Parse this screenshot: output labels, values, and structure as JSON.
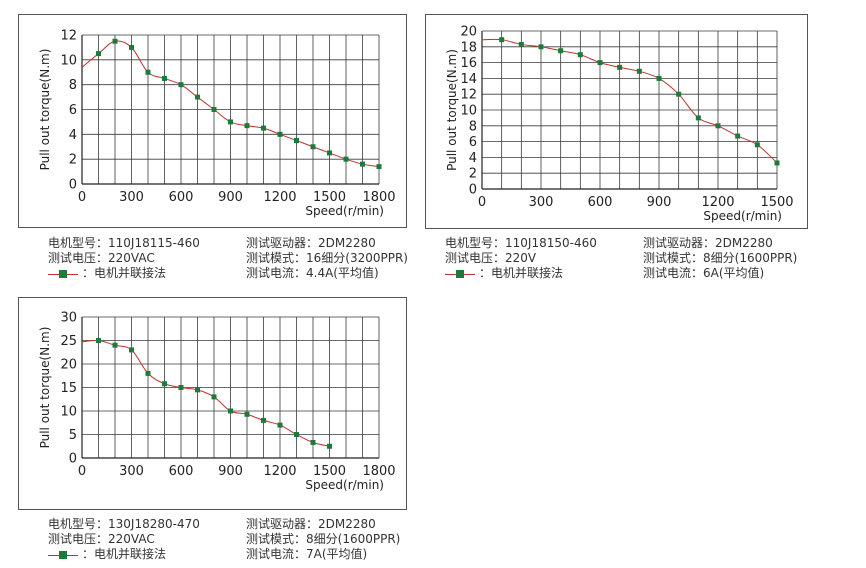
{
  "chart_data": [
    {
      "type": "line",
      "xlabel": "Speed(r/min)",
      "ylabel": "Pull out torque(N.m)",
      "xlim": [
        0,
        1800
      ],
      "ylim": [
        0,
        12
      ],
      "xticks": [
        0,
        300,
        600,
        900,
        1200,
        1500,
        1800
      ],
      "yticks": [
        0,
        2,
        4,
        6,
        8,
        10,
        12
      ],
      "grid": true,
      "curve_start": [
        0,
        9.4
      ],
      "series": [
        {
          "x": [
            100,
            200,
            300,
            400,
            500,
            600,
            700,
            800,
            900,
            1000,
            1100,
            1200,
            1300,
            1400,
            1500,
            1600,
            1700,
            1800
          ],
          "values": [
            10.5,
            11.5,
            11.0,
            9.0,
            8.5,
            8.0,
            7.0,
            6.0,
            5.0,
            4.7,
            4.5,
            4.0,
            3.5,
            3.0,
            2.5,
            2.0,
            1.6,
            1.4
          ]
        }
      ],
      "info": {
        "motor_model": "电机型号：110J18115-460",
        "voltage": "测试电压：220VAC",
        "legend": "：电机并联接法",
        "driver": "测试驱动器：2DM2280",
        "mode": "测试模式：16细分(3200PPR)",
        "current": "测试电流：4.4A(平均值)"
      }
    },
    {
      "type": "line",
      "xlabel": "Speed(r/min)",
      "ylabel": "Pull out torque(N.m)",
      "xlim": [
        0,
        1500
      ],
      "ylim": [
        0,
        20
      ],
      "xticks": [
        0,
        300,
        600,
        900,
        1200,
        1500
      ],
      "yticks": [
        0,
        2,
        4,
        6,
        8,
        10,
        12,
        14,
        16,
        18,
        20
      ],
      "grid": true,
      "curve_start": [
        0,
        18.9
      ],
      "series": [
        {
          "x": [
            100,
            200,
            300,
            400,
            500,
            600,
            700,
            800,
            900,
            1000,
            1100,
            1200,
            1300,
            1400,
            1500
          ],
          "values": [
            18.9,
            18.3,
            18.0,
            17.5,
            17.0,
            16.0,
            15.4,
            14.9,
            14.0,
            12.0,
            9.0,
            8.0,
            6.7,
            5.6,
            3.3
          ]
        }
      ],
      "info": {
        "motor_model": "电机型号：110J18150-460",
        "voltage": "测试电压：220V",
        "legend": "：电机并联接法",
        "driver": "测试驱动器：2DM2280",
        "mode": "测试模式：8细分(1600PPR)",
        "current": "测试电流：6A(平均值)"
      }
    },
    {
      "type": "line",
      "xlabel": "Speed(r/min)",
      "ylabel": "Pull out torque(N.m)",
      "xlim": [
        0,
        1800
      ],
      "ylim": [
        0,
        30
      ],
      "xticks": [
        0,
        300,
        600,
        900,
        1200,
        1500,
        1800
      ],
      "yticks": [
        0,
        5,
        10,
        15,
        20,
        25,
        30
      ],
      "grid": true,
      "curve_start": [
        0,
        24.7
      ],
      "series": [
        {
          "x": [
            100,
            200,
            300,
            400,
            500,
            600,
            700,
            800,
            900,
            1000,
            1100,
            1200,
            1300,
            1400,
            1500
          ],
          "values": [
            25.0,
            24.0,
            23.0,
            18.0,
            15.8,
            15.0,
            14.5,
            13.0,
            10.0,
            9.3,
            8.0,
            7.0,
            5.0,
            3.3,
            2.5
          ]
        }
      ],
      "info": {
        "motor_model": "电机型号：130J18280-470",
        "voltage": "测试电压：220VAC",
        "legend": "：电机并联接法",
        "driver": "测试驱动器：2DM2280",
        "mode": "测试模式：8细分(1600PPR)",
        "current": "测试电流：7A(平均值)"
      }
    }
  ]
}
